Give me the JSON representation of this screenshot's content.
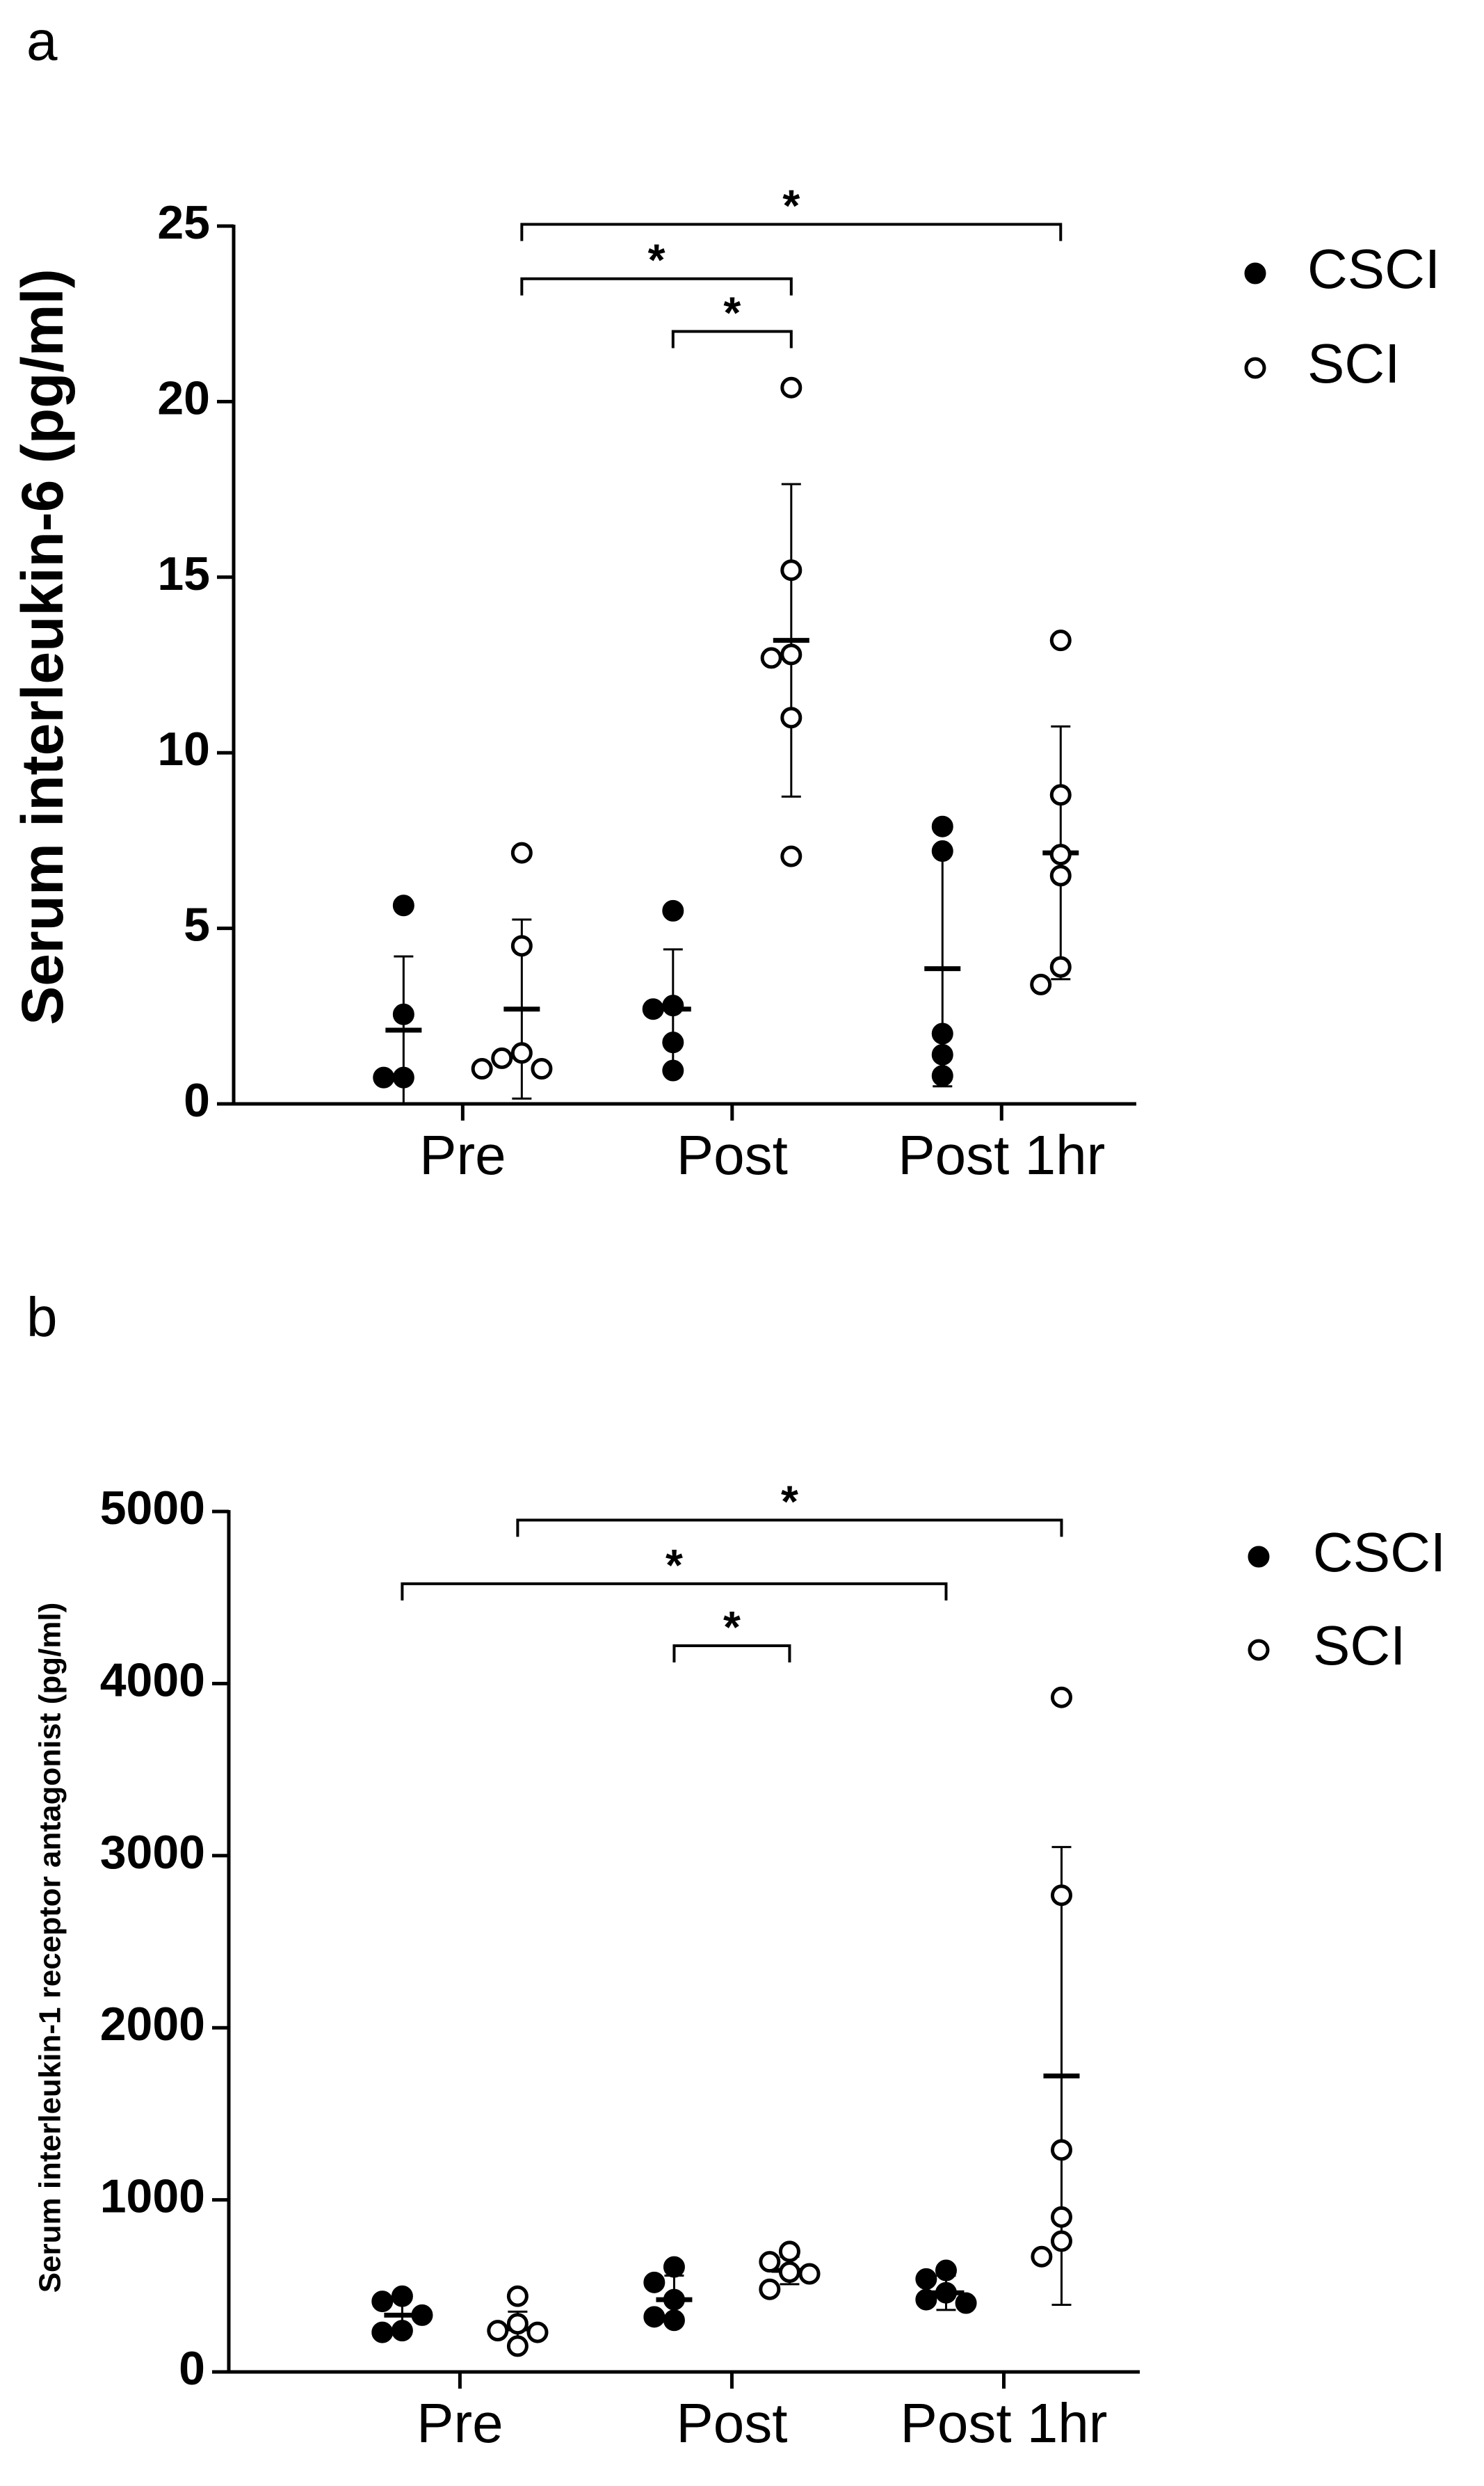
{
  "chart_data": [
    {
      "type": "dot",
      "panel": "a",
      "ylabel": "Serum interleukin-6 (pg/ml)",
      "categories": [
        "Pre",
        "Post",
        "Post 1hr"
      ],
      "ylim": [
        0,
        25
      ],
      "yticks": [
        0,
        5,
        10,
        15,
        20,
        25
      ],
      "series": [
        {
          "name": "CSCI",
          "color": "#000000",
          "filled": true,
          "values": [
            [
              5.65,
              2.55,
              0.75,
              0.75
            ],
            [
              5.5,
              2.8,
              2.7,
              1.75,
              0.95
            ],
            [
              7.9,
              7.2,
              2.0,
              1.4,
              0.8
            ]
          ],
          "mean": [
            2.1,
            2.7,
            3.85
          ],
          "sd": [
            2.1,
            1.7,
            3.35
          ]
        },
        {
          "name": "SCI",
          "color": "#000000",
          "filled": false,
          "values": [
            [
              7.15,
              4.5,
              1.45,
              1.3,
              1.0,
              1.0
            ],
            [
              20.4,
              15.2,
              12.8,
              12.7,
              11.0,
              7.05
            ],
            [
              13.2,
              8.8,
              7.1,
              6.5,
              3.9,
              3.4
            ]
          ],
          "mean": [
            2.7,
            13.2,
            7.15
          ],
          "sd": [
            2.55,
            4.45,
            3.6
          ]
        }
      ],
      "annotations": [
        {
          "text": "*",
          "from": [
            0,
            1
          ],
          "to": [
            2,
            1
          ],
          "y": 25.05
        },
        {
          "text": "*",
          "from": [
            0,
            1
          ],
          "to": [
            1,
            1
          ],
          "y": 23.5
        },
        {
          "text": "*",
          "from": [
            1,
            0
          ],
          "to": [
            1,
            1
          ],
          "y": 22.0
        }
      ]
    },
    {
      "type": "dot",
      "panel": "b",
      "ylabel": "Serum interleukin-1 receptor antagonist (pg/ml)",
      "categories": [
        "Pre",
        "Post",
        "Post 1hr"
      ],
      "ylim": [
        0,
        5000
      ],
      "yticks": [
        0,
        1000,
        2000,
        3000,
        4000,
        5000
      ],
      "series": [
        {
          "name": "CSCI",
          "color": "#000000",
          "filled": true,
          "values": [
            [
              440,
              410,
              330,
              240,
              230
            ],
            [
              610,
              520,
              420,
              320,
              300
            ],
            [
              590,
              540,
              460,
              420,
              400
            ]
          ],
          "mean": [
            330,
            420,
            460
          ],
          "sd": [
            90,
            140,
            100
          ]
        },
        {
          "name": "SCI",
          "color": "#000000",
          "filled": false,
          "values": [
            [
              440,
              280,
              240,
              230,
              150
            ],
            [
              700,
              640,
              580,
              570,
              480
            ],
            [
              3920,
              2770,
              1290,
              900,
              760,
              670
            ]
          ],
          "mean": [
            250,
            590,
            1720
          ],
          "sd": [
            100,
            80,
            1330
          ]
        }
      ],
      "annotations": [
        {
          "text": "*",
          "from": [
            0,
            1
          ],
          "to": [
            2,
            1
          ],
          "y": 4950
        },
        {
          "text": "*",
          "from": [
            0,
            0
          ],
          "to": [
            2,
            0
          ],
          "y": 4580
        },
        {
          "text": "*",
          "from": [
            1,
            0
          ],
          "to": [
            1,
            1
          ],
          "y": 4220
        }
      ]
    }
  ]
}
